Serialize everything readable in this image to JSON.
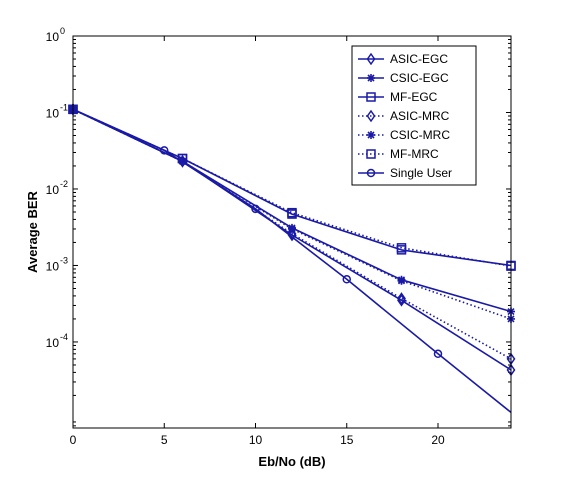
{
  "chart_data": {
    "type": "line",
    "title": "",
    "xlabel": "Eb/No (dB)",
    "ylabel": "Average BER",
    "xlim": [
      0,
      24
    ],
    "ylim": [
      7.5e-06,
      1
    ],
    "yscale": "log",
    "grid": false,
    "legend_position": "top-right",
    "x_ticks": [
      0,
      5,
      10,
      15,
      20
    ],
    "x_tick_labels": [
      "0",
      "5",
      "10",
      "15",
      "20"
    ],
    "y_ticks": [
      1,
      0.1,
      0.01,
      0.001,
      0.0001
    ],
    "y_tick_labels": [
      {
        "base": "10",
        "exp": "0"
      },
      {
        "base": "10",
        "exp": "-1"
      },
      {
        "base": "10",
        "exp": "-2"
      },
      {
        "base": "10",
        "exp": "-3"
      },
      {
        "base": "10",
        "exp": "-4"
      }
    ],
    "line_color": "#1a1aa6",
    "series": [
      {
        "name": "ASIC-EGC",
        "marker": "diamond",
        "dash": "solid",
        "x": [
          0,
          6,
          12,
          18,
          24
        ],
        "y": [
          0.11,
          0.023,
          0.0025,
          0.00035,
          4.3e-05
        ]
      },
      {
        "name": "CSIC-EGC",
        "marker": "star",
        "dash": "solid",
        "x": [
          0,
          6,
          12,
          18,
          24
        ],
        "y": [
          0.11,
          0.023,
          0.0031,
          0.00065,
          0.00025
        ]
      },
      {
        "name": "MF-EGC",
        "marker": "square",
        "dash": "solid",
        "x": [
          0,
          6,
          12,
          18,
          24
        ],
        "y": [
          0.11,
          0.025,
          0.0047,
          0.0016,
          0.001
        ]
      },
      {
        "name": "ASIC-MRC",
        "marker": "diamond",
        "dash": "dotted",
        "x": [
          0,
          6,
          12,
          18,
          24
        ],
        "y": [
          0.11,
          0.023,
          0.0026,
          0.00037,
          6e-05
        ]
      },
      {
        "name": "CSIC-MRC",
        "marker": "star",
        "dash": "dotted",
        "x": [
          0,
          6,
          12,
          18,
          24
        ],
        "y": [
          0.11,
          0.023,
          0.003,
          0.00063,
          0.0002
        ]
      },
      {
        "name": "MF-MRC",
        "marker": "square",
        "dash": "dotted",
        "x": [
          0,
          6,
          12,
          18,
          24
        ],
        "y": [
          0.11,
          0.025,
          0.0049,
          0.0017,
          0.00098
        ]
      },
      {
        "name": "Single User",
        "marker": "circle",
        "dash": "solid",
        "x": [
          0,
          5,
          10,
          15,
          20,
          24
        ],
        "y": [
          0.11,
          0.032,
          0.0055,
          0.00066,
          7e-05,
          1.2e-05
        ],
        "marker_x": [
          0,
          5,
          10,
          15,
          20
        ]
      }
    ]
  }
}
